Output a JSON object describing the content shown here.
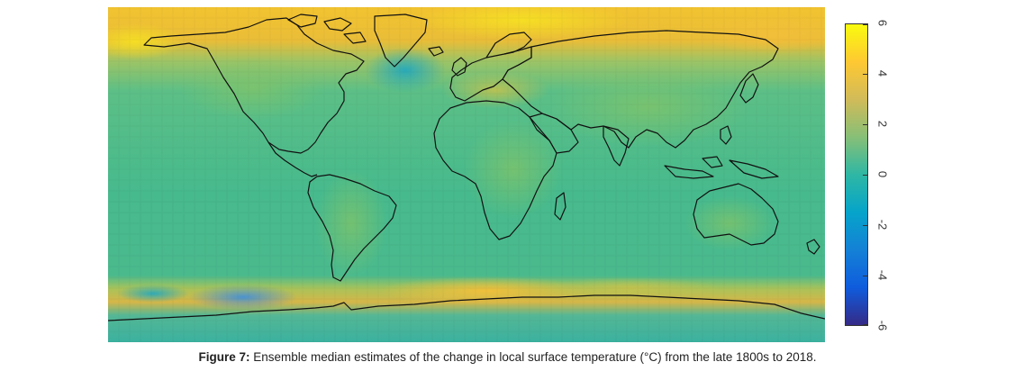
{
  "figure": {
    "label": "Figure 7:",
    "text": " Ensemble median estimates of the change in local surface temperature (°C) from the late 1800s to 2018."
  },
  "colorbar": {
    "min": -6,
    "max": 6,
    "ticks": [
      {
        "value": 6,
        "label": "6"
      },
      {
        "value": 4,
        "label": "4"
      },
      {
        "value": 2,
        "label": "2"
      },
      {
        "value": 0,
        "label": "0"
      },
      {
        "value": -2,
        "label": "-2"
      },
      {
        "value": -4,
        "label": "-4"
      },
      {
        "value": -6,
        "label": "-6"
      }
    ],
    "colors": [
      "#352a87",
      "#0f5cdd",
      "#1481d6",
      "#06a4ca",
      "#2eb7a4",
      "#87bf77",
      "#d1bb59",
      "#fec832",
      "#f9fb0e"
    ]
  },
  "map_colors": {
    "ocean_base": "#4dbb8a",
    "ocean_cool": "#2eb3a8",
    "ocean_cold": "#1ea8c4",
    "land_warm": "#7cc36a",
    "land_hot": "#b9c24f",
    "arctic_warm": "#e8b93c",
    "arctic_hot": "#f4d52a",
    "southern_band": "#d9b545",
    "southern_hot": "#f0c040",
    "antarctic_cold": "#3e8fd8",
    "coast": "#111111"
  }
}
